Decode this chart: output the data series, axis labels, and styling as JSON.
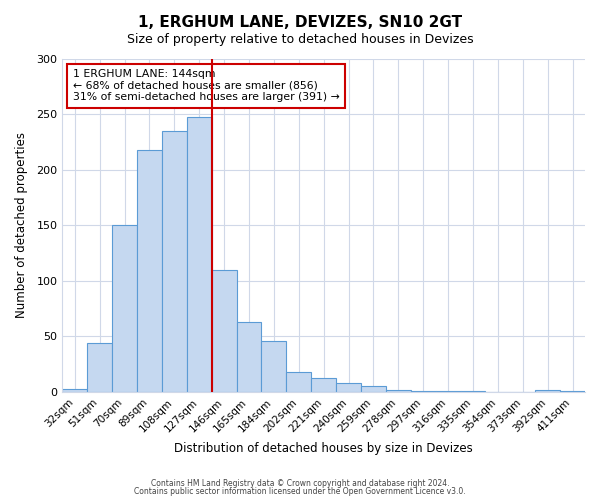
{
  "title": "1, ERGHUM LANE, DEVIZES, SN10 2GT",
  "subtitle": "Size of property relative to detached houses in Devizes",
  "xlabel": "Distribution of detached houses by size in Devizes",
  "ylabel": "Number of detached properties",
  "bar_labels": [
    "32sqm",
    "51sqm",
    "70sqm",
    "89sqm",
    "108sqm",
    "127sqm",
    "146sqm",
    "165sqm",
    "184sqm",
    "202sqm",
    "221sqm",
    "240sqm",
    "259sqm",
    "278sqm",
    "297sqm",
    "316sqm",
    "335sqm",
    "354sqm",
    "373sqm",
    "392sqm",
    "411sqm"
  ],
  "bar_values": [
    3,
    44,
    150,
    218,
    235,
    248,
    110,
    63,
    46,
    18,
    13,
    8,
    5,
    2,
    1,
    1,
    1,
    0,
    0,
    2,
    1
  ],
  "bar_color": "#c5d8f0",
  "bar_edge_color": "#5b9bd5",
  "highlight_index": 6,
  "highlight_line_color": "#cc0000",
  "annotation_text": "1 ERGHUM LANE: 144sqm\n← 68% of detached houses are smaller (856)\n31% of semi-detached houses are larger (391) →",
  "annotation_box_color": "#ffffff",
  "annotation_box_edge": "#cc0000",
  "ylim": [
    0,
    300
  ],
  "yticks": [
    0,
    50,
    100,
    150,
    200,
    250,
    300
  ],
  "footer_line1": "Contains HM Land Registry data © Crown copyright and database right 2024.",
  "footer_line2": "Contains public sector information licensed under the Open Government Licence v3.0.",
  "background_color": "#ffffff",
  "grid_color": "#d0d8e8"
}
